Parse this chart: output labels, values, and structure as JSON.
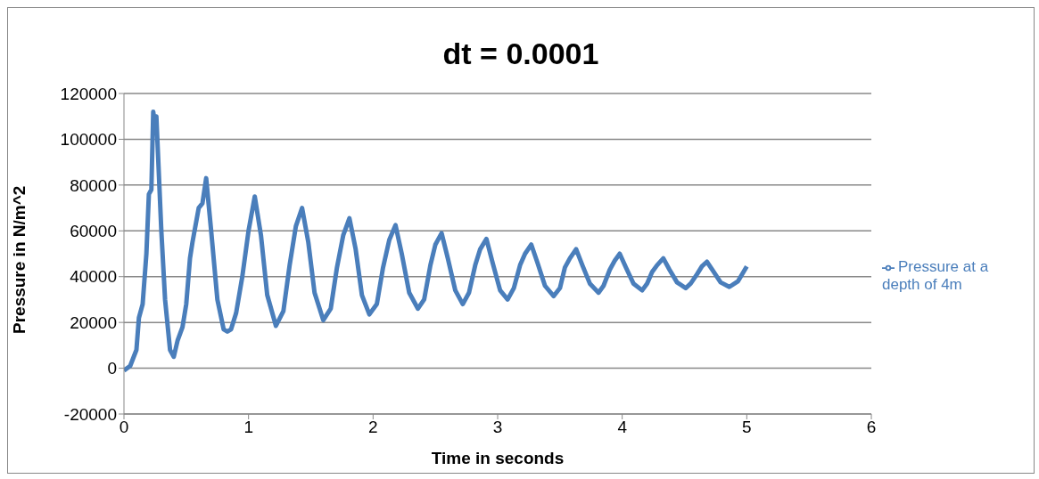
{
  "chart_data": {
    "type": "line",
    "title": "dt = 0.0001",
    "xlabel": "Time in seconds",
    "ylabel": "Pressure in N/m^2",
    "x": [
      0,
      0.05,
      0.1,
      0.12,
      0.15,
      0.18,
      0.2,
      0.22,
      0.235,
      0.25,
      0.26,
      0.3,
      0.33,
      0.37,
      0.4,
      0.43,
      0.47,
      0.5,
      0.53,
      0.55,
      0.6,
      0.63,
      0.66,
      0.7,
      0.75,
      0.8,
      0.83,
      0.86,
      0.9,
      0.95,
      1,
      1.05,
      1.1,
      1.15,
      1.22,
      1.28,
      1.33,
      1.38,
      1.43,
      1.48,
      1.53,
      1.6,
      1.66,
      1.71,
      1.76,
      1.81,
      1.86,
      1.91,
      1.97,
      2.03,
      2.08,
      2.13,
      2.18,
      2.23,
      2.29,
      2.36,
      2.41,
      2.46,
      2.5,
      2.55,
      2.6,
      2.66,
      2.72,
      2.77,
      2.82,
      2.86,
      2.91,
      2.96,
      3.02,
      3.08,
      3.13,
      3.18,
      3.22,
      3.27,
      3.32,
      3.38,
      3.45,
      3.5,
      3.54,
      3.58,
      3.63,
      3.68,
      3.74,
      3.81,
      3.85,
      3.9,
      3.94,
      3.98,
      4.03,
      4.09,
      4.16,
      4.2,
      4.24,
      4.28,
      4.33,
      4.38,
      4.44,
      4.51,
      4.55,
      4.6,
      4.64,
      4.68,
      4.73,
      4.79,
      4.86,
      4.93,
      5
    ],
    "series": [
      {
        "name": "Pressure at a depth of 4m",
        "color": "#4a7ebb",
        "values": [
          -1000,
          1000,
          8000,
          22000,
          28000,
          50000,
          76000,
          78000,
          112000,
          106000,
          110000,
          60000,
          30000,
          8000,
          5000,
          12000,
          18000,
          28000,
          48000,
          55000,
          70000,
          72000,
          83000,
          60000,
          30000,
          17000,
          16000,
          17000,
          24000,
          40000,
          60000,
          75000,
          58000,
          32000,
          18500,
          25000,
          45000,
          62000,
          70000,
          55000,
          33000,
          21000,
          26000,
          44000,
          58000,
          65500,
          52000,
          32000,
          23500,
          28000,
          44000,
          56000,
          62500,
          50000,
          33000,
          26000,
          30000,
          45000,
          54000,
          59000,
          48000,
          34000,
          28000,
          33000,
          45000,
          52000,
          56500,
          46000,
          34000,
          30000,
          35000,
          45000,
          50000,
          54000,
          46000,
          36000,
          31500,
          35000,
          44000,
          48000,
          52000,
          45000,
          37000,
          33000,
          36000,
          43000,
          47000,
          50000,
          44000,
          37000,
          34000,
          37000,
          42000,
          45000,
          48000,
          43000,
          37500,
          35000,
          37000,
          41000,
          44500,
          46500,
          42500,
          37500,
          35500,
          38000,
          44500
        ]
      }
    ],
    "xlim": [
      0,
      6
    ],
    "xticks": [
      0,
      1,
      2,
      3,
      4,
      5,
      6
    ],
    "ylim": [
      -20000,
      120000
    ],
    "yticks": [
      -20000,
      0,
      20000,
      40000,
      60000,
      80000,
      100000,
      120000
    ],
    "grid": "y",
    "legend": "right",
    "marker": "none",
    "line_style": "solid"
  }
}
